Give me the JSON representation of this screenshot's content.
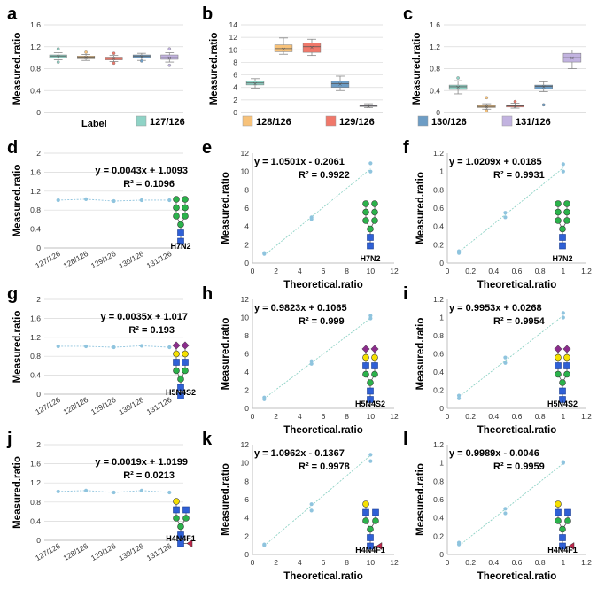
{
  "colors": {
    "127/126": "#8fd3c6",
    "128/126": "#f7c27a",
    "129/126": "#f0786a",
    "130/126": "#6d9dc5",
    "131/126": "#c2b3e0",
    "point": "#8fc4de",
    "trend": "#8fd3c6",
    "grid": "#d9d9d9",
    "axis": "#bfbfbf",
    "glc": "#2f60d6",
    "man": "#2bb24b",
    "gal": "#f5e000",
    "neu5ac": "#8b2c8c",
    "fuc": "#c0264b"
  },
  "legend": {
    "label": "Label",
    "items": [
      "127/126",
      "128/126",
      "129/126",
      "130/126",
      "131/126"
    ]
  },
  "chart_data": [
    {
      "panel": "a",
      "type": "box",
      "ylabel": "Measured.ratio",
      "ylim": [
        0,
        1.6
      ],
      "yticks": [
        0,
        0.4,
        0.8,
        1.2,
        1.6
      ],
      "ytick_labels": [
        "0",
        "0.4",
        "0.8",
        "1.2",
        "1.6"
      ],
      "boxes": [
        {
          "name": "127/126",
          "min": 0.96,
          "q1": 1.0,
          "median": 1.03,
          "q3": 1.05,
          "max": 1.09,
          "outliers": [
            0.92,
            1.16
          ]
        },
        {
          "name": "128/126",
          "min": 0.95,
          "q1": 0.98,
          "median": 1.01,
          "q3": 1.03,
          "max": 1.06,
          "outliers": [
            1.1
          ]
        },
        {
          "name": "129/126",
          "min": 0.93,
          "q1": 0.96,
          "median": 0.99,
          "q3": 1.01,
          "max": 1.04,
          "outliers": [
            0.9,
            1.08
          ]
        },
        {
          "name": "130/126",
          "min": 0.95,
          "q1": 1.0,
          "median": 1.03,
          "q3": 1.05,
          "max": 1.08,
          "outliers": [
            0.94
          ]
        },
        {
          "name": "131/126",
          "min": 0.92,
          "q1": 0.97,
          "median": 1.0,
          "q3": 1.05,
          "max": 1.09,
          "outliers": [
            0.86,
            1.16
          ]
        }
      ]
    },
    {
      "panel": "b",
      "type": "box",
      "ylabel": "Measured.ratio",
      "ylim": [
        0,
        14
      ],
      "yticks": [
        0,
        2,
        4,
        6,
        8,
        10,
        12,
        14
      ],
      "ytick_labels": [
        "0",
        "2",
        "4",
        "6",
        "8",
        "10",
        "12",
        "14"
      ],
      "boxes": [
        {
          "name": "127/126",
          "min": 3.9,
          "q1": 4.4,
          "median": 4.7,
          "q3": 5.0,
          "max": 5.4,
          "outliers": []
        },
        {
          "name": "128/126",
          "min": 9.3,
          "q1": 9.7,
          "median": 10.2,
          "q3": 10.8,
          "max": 11.9,
          "outliers": []
        },
        {
          "name": "129/126",
          "min": 9.1,
          "q1": 9.6,
          "median": 10.5,
          "q3": 11.1,
          "max": 11.7,
          "outliers": []
        },
        {
          "name": "130/126",
          "min": 3.5,
          "q1": 4.0,
          "median": 4.6,
          "q3": 5.0,
          "max": 5.8,
          "outliers": []
        },
        {
          "name": "131/126",
          "min": 0.8,
          "q1": 0.95,
          "median": 1.05,
          "q3": 1.2,
          "max": 1.4,
          "outliers": []
        }
      ]
    },
    {
      "panel": "c",
      "type": "box",
      "ylabel": "Measured.ratio",
      "ylim": [
        0,
        1.6
      ],
      "yticks": [
        0,
        0.4,
        0.8,
        1.2,
        1.6
      ],
      "ytick_labels": [
        "0",
        "0.4",
        "0.8",
        "1.2",
        "1.6"
      ],
      "boxes": [
        {
          "name": "127/126",
          "min": 0.34,
          "q1": 0.42,
          "median": 0.47,
          "q3": 0.5,
          "max": 0.58,
          "outliers": [
            0.63
          ]
        },
        {
          "name": "128/126",
          "min": 0.06,
          "q1": 0.09,
          "median": 0.11,
          "q3": 0.13,
          "max": 0.16,
          "outliers": [
            0.03,
            0.27
          ]
        },
        {
          "name": "129/126",
          "min": 0.08,
          "q1": 0.1,
          "median": 0.12,
          "q3": 0.14,
          "max": 0.17,
          "outliers": [
            0.2
          ]
        },
        {
          "name": "130/126",
          "min": 0.38,
          "q1": 0.43,
          "median": 0.48,
          "q3": 0.5,
          "max": 0.56,
          "outliers": [
            0.14
          ]
        },
        {
          "name": "131/126",
          "min": 0.8,
          "q1": 0.92,
          "median": 1.0,
          "q3": 1.08,
          "max": 1.14,
          "outliers": []
        }
      ]
    },
    {
      "panel": "d",
      "type": "line",
      "ylabel": "Measured.ratio",
      "ylim": [
        0,
        2
      ],
      "yticks": [
        0,
        0.4,
        0.8,
        1.2,
        1.6,
        2
      ],
      "ytick_labels": [
        "0",
        "0.4",
        "0.8",
        "1.2",
        "1.6",
        "2"
      ],
      "categories": [
        "127/126",
        "128/126",
        "129/126",
        "130/126",
        "131/126"
      ],
      "values": [
        1.01,
        1.03,
        0.99,
        1.01,
        1.01
      ],
      "equation": "y = 0.0043x + 1.0093",
      "r2": "R² = 0.1096",
      "glycan": "H7N2"
    },
    {
      "panel": "e",
      "type": "scatter",
      "ylabel": "Measured.ratio",
      "xlabel": "Theoretical.ratio",
      "xlim": [
        0,
        12
      ],
      "ylim": [
        0,
        12
      ],
      "xticks": [
        0,
        2,
        4,
        6,
        8,
        10,
        12
      ],
      "xtick_labels": [
        "0",
        "2",
        "4",
        "6",
        "8",
        "10",
        "12"
      ],
      "yticks": [
        0,
        2,
        4,
        6,
        8,
        10,
        12
      ],
      "ytick_labels": [
        "0",
        "2",
        "4",
        "6",
        "8",
        "10",
        "12"
      ],
      "points": [
        [
          1,
          1.0
        ],
        [
          1,
          1.1
        ],
        [
          5,
          4.8
        ],
        [
          5,
          5.0
        ],
        [
          10,
          10.0
        ],
        [
          10,
          10.9
        ]
      ],
      "fit": [
        1.0501,
        -0.2061
      ],
      "equation": "y = 1.0501x - 0.2061",
      "r2": "R² = 0.9922",
      "glycan": "H7N2"
    },
    {
      "panel": "f",
      "type": "scatter",
      "ylabel": "Measured.ratio",
      "xlabel": "Theoretical.ratio",
      "xlim": [
        0,
        1.2
      ],
      "ylim": [
        0,
        1.2
      ],
      "xticks": [
        0,
        0.2,
        0.4,
        0.6,
        0.8,
        1,
        1.2
      ],
      "xtick_labels": [
        "0",
        "0.2",
        "0.4",
        "0.6",
        "0.8",
        "1",
        "1.2"
      ],
      "yticks": [
        0,
        0.2,
        0.4,
        0.6,
        0.8,
        1,
        1.2
      ],
      "ytick_labels": [
        "0",
        "0.2",
        "0.4",
        "0.6",
        "0.8",
        "1",
        "1.2"
      ],
      "points": [
        [
          0.1,
          0.11
        ],
        [
          0.1,
          0.13
        ],
        [
          0.5,
          0.5
        ],
        [
          0.5,
          0.55
        ],
        [
          1,
          1.0
        ],
        [
          1,
          1.08
        ]
      ],
      "fit": [
        1.0209,
        0.0185
      ],
      "equation": "y = 1.0209x + 0.0185",
      "r2": "R² = 0.9931",
      "glycan": "H7N2"
    },
    {
      "panel": "g",
      "type": "line",
      "ylabel": "Measured.ratio",
      "ylim": [
        0,
        2
      ],
      "yticks": [
        0,
        0.4,
        0.8,
        1.2,
        1.6,
        2
      ],
      "ytick_labels": [
        "0",
        "0.4",
        "0.8",
        "1.2",
        "1.6",
        "2"
      ],
      "categories": [
        "127/126",
        "128/126",
        "129/126",
        "130/126",
        "131/126"
      ],
      "values": [
        1.01,
        1.01,
        0.99,
        1.02,
        0.99
      ],
      "equation": "y = 0.0035x + 1.017",
      "r2": "R² = 0.193",
      "glycan": "H5N4S2"
    },
    {
      "panel": "h",
      "type": "scatter",
      "ylabel": "Measured.ratio",
      "xlabel": "Theoretical.ratio",
      "xlim": [
        0,
        12
      ],
      "ylim": [
        0,
        12
      ],
      "xticks": [
        0,
        2,
        4,
        6,
        8,
        10,
        12
      ],
      "xtick_labels": [
        "0",
        "2",
        "4",
        "6",
        "8",
        "10",
        "12"
      ],
      "yticks": [
        0,
        2,
        4,
        6,
        8,
        10,
        12
      ],
      "ytick_labels": [
        "0",
        "2",
        "4",
        "6",
        "8",
        "10",
        "12"
      ],
      "points": [
        [
          1,
          1.0
        ],
        [
          1,
          1.2
        ],
        [
          5,
          4.9
        ],
        [
          5,
          5.2
        ],
        [
          10,
          9.9
        ],
        [
          10,
          10.2
        ]
      ],
      "fit": [
        0.9823,
        0.1065
      ],
      "equation": "y = 0.9823x + 0.1065",
      "r2": "R² = 0.999",
      "glycan": "H5N4S2"
    },
    {
      "panel": "i",
      "type": "scatter",
      "ylabel": "Measured.ratio",
      "xlabel": "Theoretical.ratio",
      "xlim": [
        0,
        1.2
      ],
      "ylim": [
        0,
        1.2
      ],
      "xticks": [
        0,
        0.2,
        0.4,
        0.6,
        0.8,
        1,
        1.2
      ],
      "xtick_labels": [
        "0",
        "0.2",
        "0.4",
        "0.6",
        "0.8",
        "1",
        "1.2"
      ],
      "yticks": [
        0,
        0.2,
        0.4,
        0.6,
        0.8,
        1,
        1.2
      ],
      "ytick_labels": [
        "0",
        "0.2",
        "0.4",
        "0.6",
        "0.8",
        "1",
        "1.2"
      ],
      "points": [
        [
          0.1,
          0.11
        ],
        [
          0.1,
          0.14
        ],
        [
          0.5,
          0.5
        ],
        [
          0.5,
          0.56
        ],
        [
          1,
          1.0
        ],
        [
          1,
          1.05
        ]
      ],
      "fit": [
        0.9953,
        0.0268
      ],
      "equation": "y = 0.9953x + 0.0268",
      "r2": "R² = 0.9954",
      "glycan": "H5N4S2"
    },
    {
      "panel": "j",
      "type": "line",
      "ylabel": "Measured.ratio",
      "ylim": [
        0,
        2
      ],
      "yticks": [
        0,
        0.4,
        0.8,
        1.2,
        1.6,
        2
      ],
      "ytick_labels": [
        "0",
        "0.4",
        "0.8",
        "1.2",
        "1.6",
        "2"
      ],
      "categories": [
        "127/126",
        "128/126",
        "129/126",
        "130/126",
        "131/126"
      ],
      "values": [
        1.02,
        1.04,
        1.0,
        1.04,
        1.0
      ],
      "equation": "y = 0.0019x + 1.0199",
      "r2": "R² = 0.0213",
      "glycan": "H4N4F1"
    },
    {
      "panel": "k",
      "type": "scatter",
      "ylabel": "Measured.ratio",
      "xlabel": "Theoretical.ratio",
      "xlim": [
        0,
        12
      ],
      "ylim": [
        0,
        12
      ],
      "xticks": [
        0,
        2,
        4,
        6,
        8,
        10,
        12
      ],
      "xtick_labels": [
        "0",
        "2",
        "4",
        "6",
        "8",
        "10",
        "12"
      ],
      "yticks": [
        0,
        2,
        4,
        6,
        8,
        10,
        12
      ],
      "ytick_labels": [
        "0",
        "2",
        "4",
        "6",
        "8",
        "10",
        "12"
      ],
      "points": [
        [
          1,
          1.0
        ],
        [
          1,
          1.1
        ],
        [
          5,
          4.8
        ],
        [
          5,
          5.5
        ],
        [
          10,
          10.2
        ],
        [
          10,
          10.9
        ]
      ],
      "fit": [
        1.0962,
        -0.1367
      ],
      "equation": "y = 1.0962x - 0.1367",
      "r2": "R² = 0.9978",
      "glycan": "H4N4F1"
    },
    {
      "panel": "l",
      "type": "scatter",
      "ylabel": "Measured.ratio",
      "xlabel": "Theoretical.ratio",
      "xlim": [
        0,
        1.2
      ],
      "ylim": [
        0,
        1.2
      ],
      "xticks": [
        0,
        0.2,
        0.4,
        0.6,
        0.8,
        1,
        1.2
      ],
      "xtick_labels": [
        "0",
        "0.2",
        "0.4",
        "0.6",
        "0.8",
        "1",
        "1.2"
      ],
      "yticks": [
        0,
        0.2,
        0.4,
        0.6,
        0.8,
        1,
        1.2
      ],
      "ytick_labels": [
        "0",
        "0.2",
        "0.4",
        "0.6",
        "0.8",
        "1",
        "1.2"
      ],
      "points": [
        [
          0.1,
          0.11
        ],
        [
          0.1,
          0.13
        ],
        [
          0.5,
          0.45
        ],
        [
          0.5,
          0.5
        ],
        [
          1,
          1.0
        ],
        [
          1,
          1.01
        ]
      ],
      "fit": [
        0.9989,
        -0.0046
      ],
      "equation": "y = 0.9989x - 0.0046",
      "r2": "R² = 0.9959",
      "glycan": "H4N4F1"
    }
  ]
}
